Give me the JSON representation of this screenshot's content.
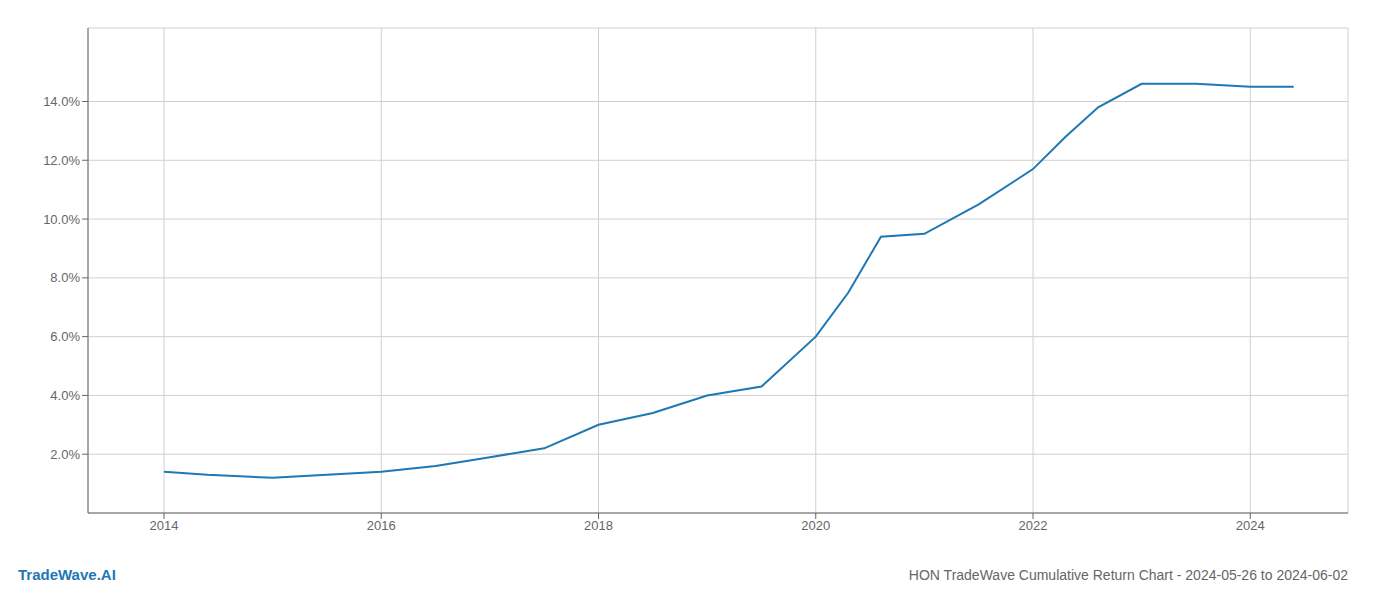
{
  "chart_data": {
    "type": "line",
    "title": "HON TradeWave Cumulative Return Chart - 2024-05-26 to 2024-06-02",
    "annotations": [
      "TradeWave.AI"
    ],
    "x": [
      2014.0,
      2014.4,
      2015.0,
      2015.5,
      2016.0,
      2016.5,
      2017.0,
      2017.5,
      2018.0,
      2018.5,
      2019.0,
      2019.5,
      2020.0,
      2020.3,
      2020.6,
      2021.0,
      2021.5,
      2022.0,
      2022.3,
      2022.6,
      2023.0,
      2023.3,
      2023.5,
      2024.0,
      2024.4
    ],
    "values": [
      0.014,
      0.013,
      0.012,
      0.013,
      0.014,
      0.016,
      0.019,
      0.022,
      0.03,
      0.034,
      0.04,
      0.043,
      0.06,
      0.075,
      0.094,
      0.095,
      0.105,
      0.117,
      0.128,
      0.138,
      0.146,
      0.146,
      0.146,
      0.145,
      0.145
    ],
    "color": "#1f77b4",
    "xlim": [
      2013.3,
      2024.9
    ],
    "xticks": [
      2014,
      2016,
      2018,
      2020,
      2022,
      2024
    ],
    "ylim": [
      0,
      0.165
    ],
    "yticks": [
      {
        "value": 0.02,
        "label": "2.0%"
      },
      {
        "value": 0.04,
        "label": "4.0%"
      },
      {
        "value": 0.06,
        "label": "6.0%"
      },
      {
        "value": 0.08,
        "label": "8.0%"
      },
      {
        "value": 0.1,
        "label": "10.0%"
      },
      {
        "value": 0.12,
        "label": "12.0%"
      },
      {
        "value": 0.14,
        "label": "14.0%"
      }
    ],
    "grid": true
  }
}
